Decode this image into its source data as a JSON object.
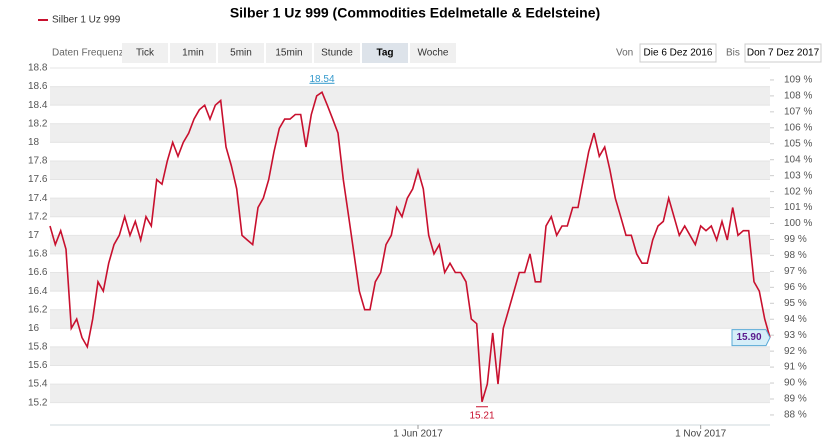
{
  "toolbar": {
    "frequency_label": "Daten Frequenz",
    "buttons": [
      "Tick",
      "1min",
      "5min",
      "15min",
      "Stunde",
      "Tag",
      "Woche"
    ],
    "active": "Tag",
    "from_label": "Von",
    "from_date": "Die 6 Dez 2016",
    "to_label": "Bis",
    "to_date": "Don 7 Dez 2017"
  },
  "chart_data": {
    "type": "line",
    "title": "Silber 1 Uz 999 (Commodities Edelmetalle & Edelsteine)",
    "series": [
      {
        "name": "Silber 1 Uz 999",
        "color": "#c8102e",
        "values": [
          17.1,
          16.9,
          17.05,
          16.85,
          16.0,
          16.1,
          15.9,
          15.8,
          16.1,
          16.5,
          16.4,
          16.7,
          16.9,
          17.0,
          17.2,
          17.0,
          17.15,
          16.95,
          17.2,
          17.1,
          17.6,
          17.55,
          17.8,
          18.0,
          17.85,
          18.0,
          18.1,
          18.25,
          18.35,
          18.4,
          18.25,
          18.4,
          18.45,
          17.95,
          17.75,
          17.5,
          17.0,
          16.95,
          16.9,
          17.3,
          17.4,
          17.6,
          17.9,
          18.15,
          18.25,
          18.25,
          18.3,
          18.3,
          17.95,
          18.3,
          18.5,
          18.54,
          18.4,
          18.25,
          18.1,
          17.6,
          17.2,
          16.8,
          16.4,
          16.2,
          16.2,
          16.5,
          16.6,
          16.9,
          17.0,
          17.3,
          17.2,
          17.4,
          17.5,
          17.7,
          17.5,
          17.0,
          16.8,
          16.9,
          16.6,
          16.7,
          16.6,
          16.6,
          16.5,
          16.1,
          16.05,
          15.21,
          15.4,
          15.95,
          15.4,
          16.0,
          16.2,
          16.4,
          16.6,
          16.6,
          16.8,
          16.5,
          16.5,
          17.1,
          17.2,
          17.0,
          17.1,
          17.1,
          17.3,
          17.3,
          17.6,
          17.9,
          18.1,
          17.85,
          17.95,
          17.7,
          17.4,
          17.2,
          17.0,
          17.0,
          16.8,
          16.7,
          16.7,
          16.95,
          17.1,
          17.15,
          17.4,
          17.2,
          17.0,
          17.1,
          17.0,
          16.9,
          17.1,
          17.05,
          17.1,
          16.95,
          17.15,
          16.95,
          17.3,
          17.0,
          17.05,
          17.05,
          16.5,
          16.4,
          16.1,
          15.9
        ]
      }
    ],
    "max_label": "18.54",
    "min_label": "15.21",
    "last_label": "15.90",
    "xlim": [
      0,
      135
    ],
    "xticks": [
      {
        "value": 69,
        "label": "1 Jun 2017"
      },
      {
        "value": 122,
        "label": "1 Nov 2017"
      }
    ],
    "ylim": [
      14.96,
      18.886
    ],
    "yticks": [
      15.2,
      15.4,
      15.6,
      15.8,
      16,
      16.2,
      16.4,
      16.6,
      16.8,
      17,
      17.2,
      17.4,
      17.6,
      17.8,
      18,
      18.2,
      18.4,
      18.6,
      18.8
    ],
    "y2lim": [
      87.37,
      110.25
    ],
    "y2ticks": [
      {
        "value": 88,
        "label": "88 %"
      },
      {
        "value": 89,
        "label": "89 %"
      },
      {
        "value": 90,
        "label": "90 %"
      },
      {
        "value": 91,
        "label": "91 %"
      },
      {
        "value": 92,
        "label": "92 %"
      },
      {
        "value": 93,
        "label": "93 %"
      },
      {
        "value": 94,
        "label": "94 %"
      },
      {
        "value": 95,
        "label": "95 %"
      },
      {
        "value": 96,
        "label": "96 %"
      },
      {
        "value": 97,
        "label": "97 %"
      },
      {
        "value": 98,
        "label": "98 %"
      },
      {
        "value": 99,
        "label": "99 %"
      },
      {
        "value": 100,
        "label": "100 %"
      },
      {
        "value": 101,
        "label": "101 %"
      },
      {
        "value": 102,
        "label": "102 %"
      },
      {
        "value": 103,
        "label": "103 %"
      },
      {
        "value": 104,
        "label": "104 %"
      },
      {
        "value": 105,
        "label": "105 %"
      },
      {
        "value": 106,
        "label": "106 %"
      },
      {
        "value": 107,
        "label": "107 %"
      },
      {
        "value": 108,
        "label": "108 %"
      },
      {
        "value": 109,
        "label": "109 %"
      }
    ],
    "grid": true
  }
}
